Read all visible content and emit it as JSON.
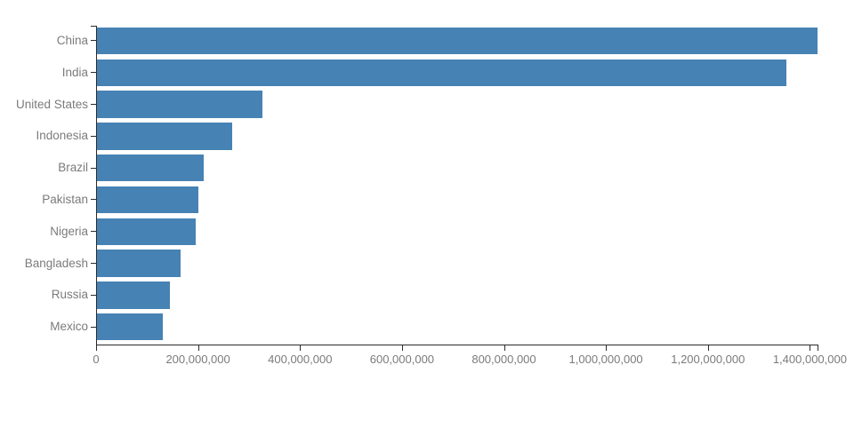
{
  "chart_data": {
    "type": "bar",
    "orientation": "horizontal",
    "title": "",
    "xlabel": "",
    "ylabel": "",
    "categories": [
      "China",
      "India",
      "United States",
      "Indonesia",
      "Brazil",
      "Pakistan",
      "Nigeria",
      "Bangladesh",
      "Russia",
      "Mexico"
    ],
    "values": [
      1415045928,
      1354051854,
      326766748,
      266794980,
      210867954,
      200813818,
      195875237,
      166368149,
      143964709,
      130759074
    ],
    "xlim": [
      0,
      1415045928
    ],
    "x_tick_values": [
      0,
      200000000,
      400000000,
      600000000,
      800000000,
      1000000000,
      1200000000,
      1400000000
    ],
    "x_tick_labels": [
      "0",
      "200,000,000",
      "400,000,000",
      "600,000,000",
      "800,000,000",
      "1,000,000,000",
      "1,200,000,000",
      "1,400,000,000"
    ],
    "grid": false,
    "legend": false,
    "colors": {
      "bar": "#4682b4",
      "axis": "#2b2b2b",
      "tick_label": "#7b7b7b",
      "background": "#ffffff"
    }
  }
}
